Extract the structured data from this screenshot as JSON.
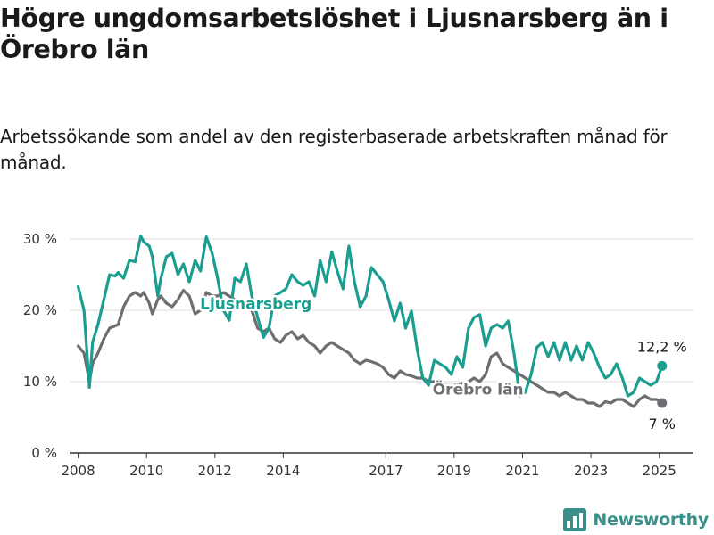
{
  "header": {
    "title": "Högre ungdomsarbetslöshet i Ljusnarsberg än i Örebro län",
    "subtitle": "Arbetssökande som andel av den registerbaserade arbetskraften månad för månad."
  },
  "brand": {
    "name": "Newsworthy",
    "icon": "newsworthy-logo-icon",
    "color": "#3b8f8a"
  },
  "chart_data": {
    "type": "line",
    "title": "Högre ungdomsarbetslöshet i Ljusnarsberg än i Örebro län",
    "subtitle": "Arbetssökande som andel av den registerbaserade arbetskraften månad för månad.",
    "xlabel": "",
    "ylabel": "",
    "x_ticks": [
      2008,
      2010,
      2012,
      2014,
      2017,
      2019,
      2021,
      2023,
      2025
    ],
    "x_tick_labels": [
      "2008",
      "2010",
      "2012",
      "2014",
      "2017",
      "2019",
      "2021",
      "2023",
      "2025"
    ],
    "xlim": [
      2007.75,
      2026
    ],
    "y_ticks": [
      0,
      10,
      20,
      30
    ],
    "y_tick_labels": [
      "0 %",
      "10 %",
      "20 %",
      "30 %"
    ],
    "ylim": [
      0,
      30
    ],
    "grid": "horizontal",
    "legend": "inline labels",
    "series": [
      {
        "name": "Ljusnarsberg",
        "color": "#1b9e8f",
        "end_label": "12,2 %",
        "end_value": 12.2,
        "x": [
          2008.0,
          2008.17,
          2008.33,
          2008.42,
          2008.58,
          2008.75,
          2008.92,
          2009.08,
          2009.17,
          2009.33,
          2009.5,
          2009.67,
          2009.83,
          2009.92,
          2010.08,
          2010.17,
          2010.33,
          2010.42,
          2010.58,
          2010.75,
          2010.92,
          2011.08,
          2011.25,
          2011.42,
          2011.58,
          2011.75,
          2011.92,
          2012.08,
          2012.25,
          2012.42,
          2012.58,
          2012.75,
          2012.92,
          2013.08,
          2013.25,
          2013.42,
          2013.58,
          2013.75,
          2013.92,
          2014.08,
          2014.25,
          2014.42,
          2014.58,
          2014.75,
          2014.92,
          2015.08,
          2015.25,
          2015.42,
          2015.58,
          2015.75,
          2015.92,
          2016.08,
          2016.25,
          2016.42,
          2016.58,
          2016.75,
          2016.92,
          2017.08,
          2017.25,
          2017.42,
          2017.58,
          2017.75,
          2017.92,
          2018.08,
          2018.25,
          2018.42,
          2018.58,
          2018.75,
          2018.92,
          2019.08,
          2019.25,
          2019.42,
          2019.58,
          2019.75,
          2019.92,
          2020.08,
          2020.25,
          2020.42,
          2020.58,
          2020.75,
          2020.92,
          2021.08,
          2021.25,
          2021.42,
          2021.58,
          2021.75,
          2021.92,
          2022.08,
          2022.25,
          2022.42,
          2022.58,
          2022.75,
          2022.92,
          2023.08,
          2023.25,
          2023.42,
          2023.58,
          2023.75,
          2023.92,
          2024.08,
          2024.25,
          2024.42,
          2024.58,
          2024.75,
          2024.92,
          2025.08
        ],
        "values": [
          23.3,
          20.0,
          9.2,
          15.5,
          18.0,
          21.5,
          25.0,
          24.8,
          25.3,
          24.5,
          27.0,
          26.8,
          30.4,
          29.6,
          29.0,
          27.5,
          22.0,
          24.5,
          27.5,
          28.0,
          25.0,
          26.5,
          24.0,
          27.0,
          25.5,
          30.3,
          28.0,
          24.5,
          20.0,
          18.6,
          24.5,
          24.0,
          26.5,
          22.0,
          19.0,
          16.2,
          17.5,
          22.0,
          22.5,
          23.0,
          25.0,
          24.0,
          23.5,
          24.0,
          22.0,
          27.0,
          24.0,
          28.2,
          25.5,
          23.0,
          29.0,
          24.0,
          20.5,
          22.0,
          26.0,
          25.0,
          24.0,
          21.5,
          18.5,
          21.0,
          17.5,
          19.9,
          14.5,
          10.5,
          9.5,
          13.0,
          12.5,
          12.0,
          11.0,
          13.5,
          12.0,
          17.5,
          19.0,
          19.4,
          15.0,
          17.5,
          18.0,
          17.5,
          18.5,
          14.0,
          8.0,
          8.5,
          11.0,
          14.8,
          15.5,
          13.5,
          15.5,
          13.0,
          15.5,
          13.0,
          15.0,
          13.0,
          15.5,
          14.0,
          12.0,
          10.5,
          11.0,
          12.5,
          10.5,
          8.0,
          8.5,
          10.5,
          10.0,
          9.5,
          10.0,
          12.2
        ]
      },
      {
        "name": "Örebro län",
        "color": "#6d6e71",
        "end_label": "7 %",
        "end_value": 7.0,
        "x": [
          2008.0,
          2008.17,
          2008.33,
          2008.42,
          2008.58,
          2008.75,
          2008.92,
          2009.08,
          2009.17,
          2009.33,
          2009.5,
          2009.67,
          2009.83,
          2009.92,
          2010.08,
          2010.17,
          2010.33,
          2010.42,
          2010.58,
          2010.75,
          2010.92,
          2011.08,
          2011.25,
          2011.42,
          2011.58,
          2011.75,
          2011.92,
          2012.08,
          2012.25,
          2012.42,
          2012.58,
          2012.75,
          2012.92,
          2013.08,
          2013.25,
          2013.42,
          2013.58,
          2013.75,
          2013.92,
          2014.08,
          2014.25,
          2014.42,
          2014.58,
          2014.75,
          2014.92,
          2015.08,
          2015.25,
          2015.42,
          2015.58,
          2015.75,
          2015.92,
          2016.08,
          2016.25,
          2016.42,
          2016.58,
          2016.75,
          2016.92,
          2017.08,
          2017.25,
          2017.42,
          2017.58,
          2017.75,
          2017.92,
          2018.08,
          2018.25,
          2018.42,
          2018.58,
          2018.75,
          2018.92,
          2019.08,
          2019.25,
          2019.42,
          2019.58,
          2019.75,
          2019.92,
          2020.08,
          2020.25,
          2020.42,
          2020.58,
          2020.75,
          2020.92,
          2021.08,
          2021.25,
          2021.42,
          2021.58,
          2021.75,
          2021.92,
          2022.08,
          2022.25,
          2022.42,
          2022.58,
          2022.75,
          2022.92,
          2023.08,
          2023.25,
          2023.42,
          2023.58,
          2023.75,
          2023.92,
          2024.08,
          2024.25,
          2024.42,
          2024.58,
          2024.75,
          2024.92,
          2025.08
        ],
        "values": [
          15.0,
          14.0,
          10.0,
          12.5,
          14.0,
          16.0,
          17.5,
          17.8,
          18.0,
          20.5,
          22.0,
          22.5,
          22.0,
          22.5,
          21.0,
          19.5,
          21.5,
          22.0,
          21.0,
          20.5,
          21.5,
          22.8,
          22.0,
          19.5,
          20.0,
          22.5,
          22.0,
          22.0,
          22.5,
          22.0,
          21.5,
          21.0,
          20.5,
          20.0,
          17.5,
          17.0,
          17.5,
          16.0,
          15.5,
          16.5,
          17.0,
          16.0,
          16.5,
          15.5,
          15.0,
          14.0,
          15.0,
          15.5,
          15.0,
          14.5,
          14.0,
          13.0,
          12.5,
          13.0,
          12.8,
          12.5,
          12.0,
          11.0,
          10.5,
          11.5,
          11.0,
          10.8,
          10.5,
          10.5,
          10.0,
          10.0,
          9.8,
          9.5,
          9.5,
          9.5,
          9.8,
          10.0,
          10.5,
          10.0,
          11.0,
          13.5,
          14.0,
          12.5,
          12.0,
          11.5,
          11.0,
          10.5,
          10.0,
          9.5,
          9.0,
          8.5,
          8.5,
          8.0,
          8.5,
          8.0,
          7.5,
          7.5,
          7.0,
          7.0,
          6.5,
          7.2,
          7.0,
          7.5,
          7.5,
          7.0,
          6.5,
          7.5,
          8.0,
          7.5,
          7.5,
          7.0
        ]
      }
    ]
  }
}
